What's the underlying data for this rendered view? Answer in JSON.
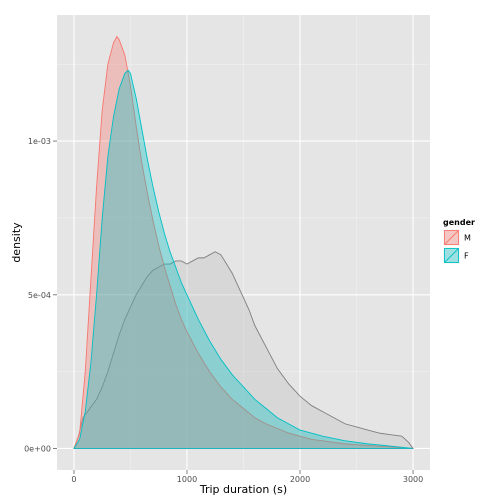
{
  "chart_data": {
    "type": "area",
    "title": "",
    "xlabel": "Trip duration (s)",
    "ylabel": "density",
    "xlim": [
      -150,
      3150
    ],
    "ylim": [
      -7e-05,
      0.00141
    ],
    "x_ticks": [
      0,
      1000,
      2000,
      3000
    ],
    "x_tick_labels": [
      "0",
      "1000",
      "2000",
      "3000"
    ],
    "y_ticks": [
      0,
      0.0005,
      0.001
    ],
    "y_tick_labels": [
      "0e+00",
      "5e-04",
      "1e-03"
    ],
    "grid": true,
    "panel_background": "#e5e5e5",
    "legend": {
      "title": "gender",
      "position": "right",
      "entries": [
        "M",
        "F"
      ]
    },
    "series": [
      {
        "fill": "#bebebe",
        "line_color": "#7f7f7f",
        "x": [
          0,
          40,
          80,
          120,
          160,
          200,
          250,
          300,
          350,
          400,
          450,
          500,
          550,
          600,
          650,
          700,
          750,
          800,
          850,
          900,
          950,
          1000,
          1050,
          1100,
          1150,
          1200,
          1250,
          1300,
          1350,
          1400,
          1450,
          1500,
          1550,
          1600,
          1700,
          1800,
          1900,
          2000,
          2100,
          2200,
          2300,
          2400,
          2500,
          2600,
          2700,
          2800,
          2900,
          2960,
          3000
        ],
        "y": [
          0,
          4e-05,
          0.0001,
          0.00012,
          0.00014,
          0.00016,
          0.0002,
          0.00025,
          0.00031,
          0.00037,
          0.00042,
          0.00046,
          0.0005,
          0.00053,
          0.00056,
          0.00058,
          0.00059,
          0.0006,
          0.0006,
          0.00061,
          0.00061,
          0.0006,
          0.00061,
          0.00062,
          0.00062,
          0.00063,
          0.00064,
          0.00063,
          0.0006,
          0.00057,
          0.00053,
          0.00049,
          0.00045,
          0.0004,
          0.00033,
          0.00026,
          0.00021,
          0.00017,
          0.00014,
          0.00012,
          0.0001,
          8e-05,
          7e-05,
          6e-05,
          5e-05,
          4.5e-05,
          4e-05,
          2e-05,
          0
        ]
      },
      {
        "name": "M",
        "fill": "#f8766d",
        "line_color": "#f8766d",
        "x": [
          0,
          50,
          100,
          150,
          200,
          250,
          300,
          350,
          380,
          400,
          450,
          500,
          550,
          600,
          650,
          700,
          750,
          800,
          850,
          900,
          950,
          1000,
          1100,
          1200,
          1300,
          1400,
          1500,
          1600,
          1700,
          1800,
          1900,
          2000,
          2100,
          2200,
          2400,
          2600,
          2800,
          3000
        ],
        "y": [
          0,
          5e-05,
          0.00025,
          0.00055,
          0.00085,
          0.0011,
          0.00125,
          0.00132,
          0.00134,
          0.00133,
          0.00128,
          0.00118,
          0.00105,
          0.00093,
          0.00083,
          0.00074,
          0.00066,
          0.00059,
          0.00053,
          0.00047,
          0.00042,
          0.00038,
          0.00031,
          0.00025,
          0.0002,
          0.00016,
          0.00013,
          0.0001,
          8e-05,
          6.5e-05,
          5e-05,
          4e-05,
          3e-05,
          2.5e-05,
          1.5e-05,
          1e-05,
          5e-06,
          0
        ]
      },
      {
        "name": "F",
        "fill": "#00bfc4",
        "line_color": "#00bfc4",
        "x": [
          0,
          50,
          100,
          150,
          200,
          250,
          300,
          350,
          400,
          450,
          480,
          500,
          550,
          600,
          650,
          700,
          750,
          800,
          850,
          900,
          950,
          1000,
          1100,
          1200,
          1300,
          1400,
          1500,
          1600,
          1700,
          1800,
          1900,
          2000,
          2100,
          2200,
          2400,
          2600,
          2800,
          3000
        ],
        "y": [
          0,
          3e-05,
          0.00012,
          0.00028,
          0.0005,
          0.00075,
          0.00095,
          0.00108,
          0.00117,
          0.00122,
          0.00123,
          0.00122,
          0.00114,
          0.00104,
          0.00094,
          0.00085,
          0.00077,
          0.0007,
          0.00064,
          0.00059,
          0.00054,
          0.0005,
          0.00042,
          0.00035,
          0.00029,
          0.00024,
          0.0002,
          0.00016,
          0.00013,
          0.0001,
          8e-05,
          6e-05,
          5e-05,
          4e-05,
          2.5e-05,
          1.5e-05,
          8e-06,
          0
        ]
      }
    ]
  }
}
